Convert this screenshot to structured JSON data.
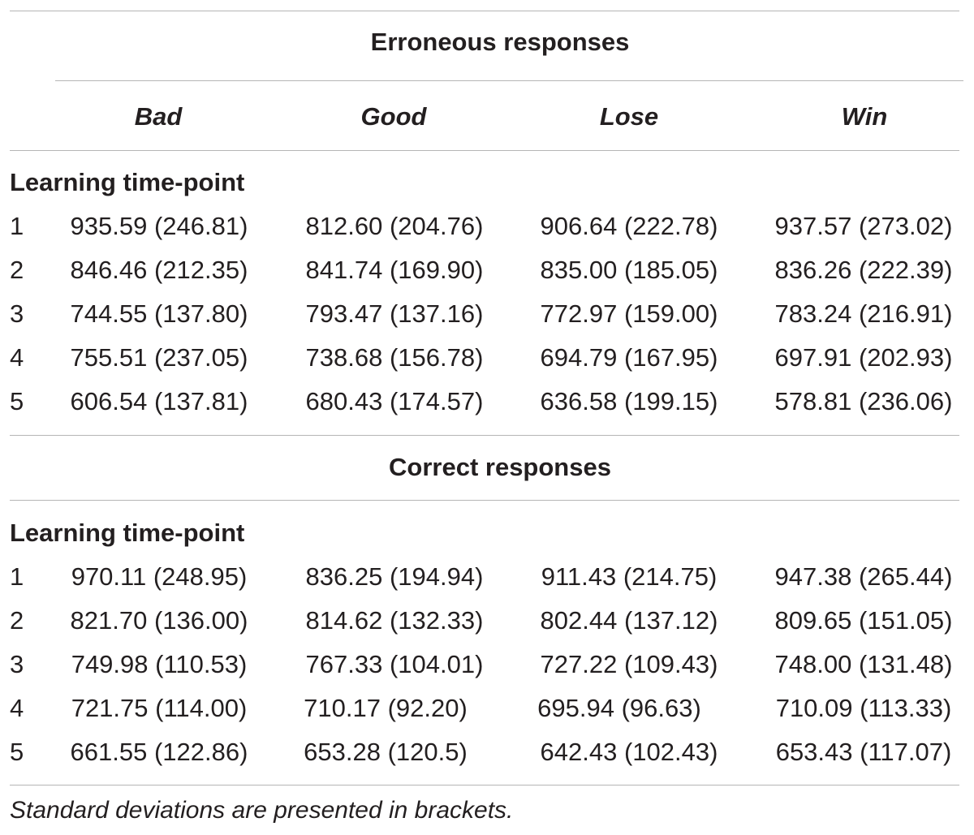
{
  "table": {
    "columns": [
      "Bad",
      "Good",
      "Lose",
      "Win"
    ],
    "sections": [
      {
        "title": "Erroneous responses",
        "row_group_label": "Learning time-point",
        "rows": [
          {
            "label": "1",
            "cells": [
              "935.59 (246.81)",
              "812.60 (204.76)",
              "906.64 (222.78)",
              "937.57 (273.02)"
            ]
          },
          {
            "label": "2",
            "cells": [
              "846.46 (212.35)",
              "841.74 (169.90)",
              "835.00 (185.05)",
              "836.26 (222.39)"
            ]
          },
          {
            "label": "3",
            "cells": [
              "744.55 (137.80)",
              "793.47 (137.16)",
              "772.97 (159.00)",
              "783.24 (216.91)"
            ]
          },
          {
            "label": "4",
            "cells": [
              "755.51 (237.05)",
              "738.68 (156.78)",
              "694.79 (167.95)",
              "697.91 (202.93)"
            ]
          },
          {
            "label": "5",
            "cells": [
              "606.54 (137.81)",
              "680.43 (174.57)",
              "636.58 (199.15)",
              "578.81 (236.06)"
            ]
          }
        ]
      },
      {
        "title": "Correct responses",
        "row_group_label": "Learning time-point",
        "rows": [
          {
            "label": "1",
            "cells": [
              "970.11 (248.95)",
              "836.25 (194.94)",
              "911.43 (214.75)",
              "947.38 (265.44)"
            ]
          },
          {
            "label": "2",
            "cells": [
              "821.70 (136.00)",
              "814.62 (132.33)",
              "802.44 (137.12)",
              "809.65 (151.05)"
            ]
          },
          {
            "label": "3",
            "cells": [
              "749.98 (110.53)",
              "767.33 (104.01)",
              "727.22 (109.43)",
              "748.00 (131.48)"
            ]
          },
          {
            "label": "4",
            "cells": [
              "721.75 (114.00)",
              "710.17 (92.20)",
              "695.94 (96.63)",
              "710.09 (113.33)"
            ]
          },
          {
            "label": "5",
            "cells": [
              "661.55 (122.86)",
              "653.28 (120.5)",
              "642.43 (102.43)",
              "653.43 (117.07)"
            ]
          }
        ]
      }
    ],
    "footnote": "Standard deviations are presented in brackets."
  }
}
